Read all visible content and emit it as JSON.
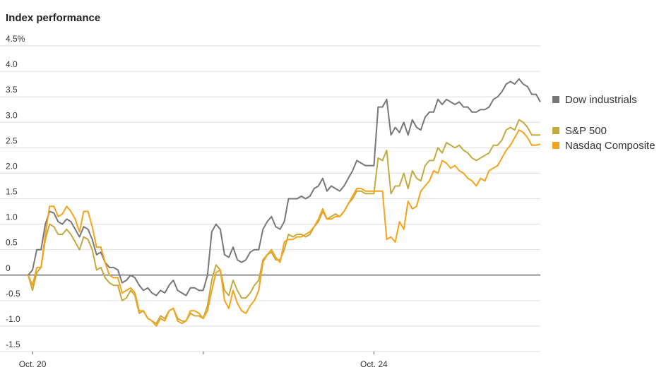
{
  "chart_data": {
    "type": "line",
    "title": "Index performance",
    "categories": [
      null,
      "Oct. 20",
      null,
      null,
      null,
      null,
      null,
      null,
      null,
      null,
      null,
      null,
      null,
      null,
      null,
      null,
      null,
      null,
      null,
      null,
      null,
      null,
      null,
      null,
      null,
      null,
      null,
      null,
      null,
      null,
      null,
      null,
      null,
      null,
      null,
      null,
      null,
      null,
      null,
      null,
      null,
      null,
      null,
      null,
      null,
      null,
      null,
      null,
      null,
      null,
      null,
      null,
      null,
      null,
      null,
      null,
      null,
      null,
      null,
      null,
      null,
      null,
      null,
      null,
      null,
      null,
      null,
      null,
      null,
      null,
      null,
      null,
      null,
      null,
      null,
      null,
      null,
      null,
      null,
      null,
      null,
      "Oct. 24",
      null,
      null,
      null,
      null,
      null,
      null,
      null,
      null,
      null,
      null,
      null,
      null,
      null,
      null,
      null,
      null,
      null,
      null,
      null,
      null,
      null,
      null,
      null,
      null,
      null,
      null,
      null,
      null,
      null,
      null,
      null,
      null,
      null,
      null,
      null,
      null,
      null,
      null,
      null
    ],
    "series": [
      {
        "name": "Dow industrials",
        "color": "#777777",
        "values": [
          0,
          0.1,
          0.5,
          0.5,
          1.0,
          1.25,
          1.22,
          1.05,
          1.0,
          1.1,
          1.05,
          0.9,
          0.75,
          0.95,
          0.9,
          0.7,
          0.4,
          0.45,
          0.25,
          0.15,
          0.15,
          0.1,
          -0.15,
          -0.1,
          0,
          -0.05,
          -0.2,
          -0.3,
          -0.25,
          -0.35,
          -0.4,
          -0.3,
          -0.35,
          -0.2,
          -0.1,
          -0.3,
          -0.35,
          -0.4,
          -0.25,
          -0.25,
          -0.3,
          -0.3,
          0,
          0.85,
          1.0,
          0.9,
          0.4,
          0.35,
          0.55,
          0.3,
          0.25,
          0.3,
          0.45,
          0.5,
          0.5,
          0.9,
          1.05,
          1.15,
          0.95,
          0.9,
          1.05,
          1.5,
          1.5,
          1.5,
          1.55,
          1.5,
          1.55,
          1.7,
          1.75,
          1.9,
          1.65,
          1.75,
          1.7,
          1.65,
          1.75,
          1.9,
          2.05,
          2.25,
          2.2,
          2.15,
          2.15,
          2.15,
          3.3,
          3.3,
          3.45,
          2.75,
          2.9,
          2.8,
          3.0,
          2.75,
          3.05,
          2.9,
          2.85,
          3.1,
          3.2,
          3.2,
          3.45,
          3.35,
          3.45,
          3.4,
          3.35,
          3.4,
          3.3,
          3.3,
          3.2,
          3.2,
          3.25,
          3.25,
          3.3,
          3.45,
          3.5,
          3.6,
          3.75,
          3.8,
          3.75,
          3.85,
          3.75,
          3.7,
          3.55,
          3.55,
          3.4
        ]
      },
      {
        "name": "S&P 500",
        "color": "#c4a93c",
        "values": [
          0,
          -0.3,
          0.05,
          0.15,
          0.7,
          1.0,
          0.95,
          0.8,
          0.8,
          0.9,
          0.8,
          0.65,
          0.5,
          0.75,
          0.7,
          0.5,
          0.1,
          0.15,
          -0.05,
          -0.15,
          -0.2,
          -0.2,
          -0.5,
          -0.45,
          -0.3,
          -0.4,
          -0.75,
          -0.7,
          -0.85,
          -0.9,
          -0.95,
          -0.8,
          -0.85,
          -0.7,
          -0.65,
          -0.85,
          -0.9,
          -0.9,
          -0.75,
          -0.8,
          -0.8,
          -0.85,
          -0.6,
          -0.1,
          0.2,
          0.1,
          -0.3,
          -0.4,
          -0.1,
          -0.3,
          -0.45,
          -0.45,
          -0.35,
          -0.2,
          -0.1,
          0.3,
          0.4,
          0.45,
          0.3,
          0.3,
          0.5,
          0.8,
          0.75,
          0.8,
          0.8,
          0.75,
          0.8,
          0.95,
          1.05,
          1.25,
          1.1,
          1.15,
          1.2,
          1.15,
          1.25,
          1.4,
          1.5,
          1.65,
          1.65,
          1.6,
          1.6,
          1.6,
          2.3,
          2.25,
          2.45,
          1.6,
          1.75,
          1.75,
          2.0,
          1.7,
          2.05,
          1.9,
          1.85,
          2.15,
          2.25,
          2.25,
          2.5,
          2.4,
          2.6,
          2.55,
          2.5,
          2.55,
          2.45,
          2.4,
          2.3,
          2.25,
          2.3,
          2.35,
          2.4,
          2.55,
          2.55,
          2.65,
          2.85,
          2.9,
          2.85,
          3.05,
          3.0,
          2.9,
          2.75,
          2.75,
          2.75
        ]
      },
      {
        "name": "Nasdaq Composite",
        "color": "#f5a31a",
        "values": [
          0,
          -0.2,
          0.15,
          0.15,
          0.8,
          1.35,
          1.35,
          1.15,
          1.2,
          1.35,
          1.25,
          1.1,
          0.85,
          1.25,
          1.25,
          0.95,
          0.55,
          0.55,
          0.25,
          0.0,
          -0.05,
          -0.05,
          -0.35,
          -0.3,
          -0.25,
          -0.35,
          -0.7,
          -0.7,
          -0.85,
          -0.9,
          -1.0,
          -0.85,
          -0.9,
          -0.7,
          -0.65,
          -0.9,
          -0.95,
          -0.9,
          -0.7,
          -0.7,
          -0.75,
          -0.85,
          -0.7,
          -0.3,
          0.05,
          0.1,
          -0.5,
          -0.65,
          -0.3,
          -0.55,
          -0.7,
          -0.75,
          -0.6,
          -0.5,
          -0.3,
          0.25,
          0.4,
          0.5,
          0.35,
          0.25,
          0.65,
          0.7,
          0.7,
          0.75,
          0.75,
          0.8,
          0.85,
          0.95,
          1.1,
          1.3,
          1.1,
          1.1,
          1.15,
          1.15,
          1.25,
          1.4,
          1.55,
          1.7,
          1.7,
          1.65,
          1.65,
          1.65,
          1.65,
          1.65,
          0.7,
          0.75,
          0.65,
          1.05,
          0.9,
          1.45,
          1.3,
          1.35,
          1.65,
          1.75,
          1.85,
          2.05,
          2.0,
          2.25,
          2.2,
          2.1,
          2.15,
          2.05,
          2.0,
          1.9,
          1.85,
          1.75,
          1.9,
          1.85,
          2.05,
          2.1,
          2.15,
          2.3,
          2.45,
          2.55,
          2.7,
          2.85,
          2.8,
          2.7,
          2.55,
          2.55,
          2.57
        ]
      }
    ],
    "ylim": [
      -1.5,
      4.5
    ],
    "yticks": [
      -1.5,
      -0.5,
      {
        "value": -1.0,
        "label": "-1.0"
      },
      0,
      0.5,
      {
        "value": 1.0,
        "label": "1.0"
      },
      1.5,
      {
        "value": 2.0,
        "label": "2.0"
      },
      2.5,
      {
        "value": 3.0,
        "label": "3.0"
      },
      3.5,
      {
        "value": 4.0,
        "label": "4.0"
      },
      {
        "value": 4.5,
        "label": "4.5%"
      }
    ],
    "grid": true,
    "legend_position": "right"
  }
}
